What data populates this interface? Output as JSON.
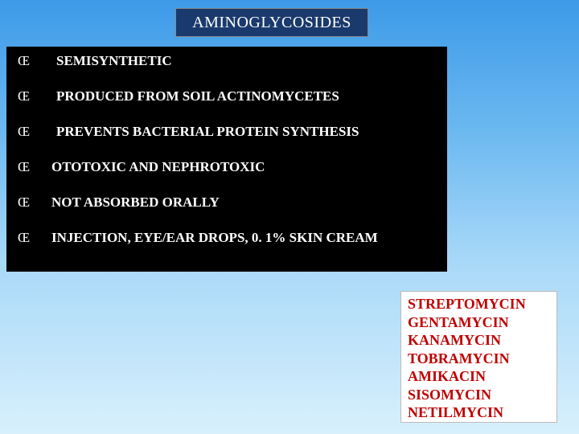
{
  "title": "AMINOGLYCOSIDES",
  "bullet_marker": "Œ",
  "bullets": [
    {
      "text": "SEMISYNTHETIC",
      "indent": true
    },
    {
      "text": "PRODUCED FROM SOIL ACTINOMYCETES",
      "indent": true
    },
    {
      "text": "PREVENTS BACTERIAL PROTEIN SYNTHESIS",
      "indent": true
    },
    {
      "text": "OTOTOXIC AND NEPHROTOXIC",
      "indent": false
    },
    {
      "text": "NOT ABSORBED ORALLY",
      "indent": false
    },
    {
      "text": "INJECTION, EYE/EAR DROPS, 0. 1% SKIN CREAM",
      "indent": false
    }
  ],
  "drugs": [
    "STREPTOMYCIN",
    "GENTAMYCIN",
    "KANAMYCIN",
    "TOBRAMYCIN",
    "AMIKACIN",
    "SISOMYCIN",
    "NETILMYCIN"
  ],
  "colors": {
    "title_bg": "#1a3a6e",
    "title_text": "#ffffff",
    "bullets_bg": "#000000",
    "bullet_text": "#ffffff",
    "drug_bg": "#ffffff",
    "drug_text": "#c00000"
  }
}
